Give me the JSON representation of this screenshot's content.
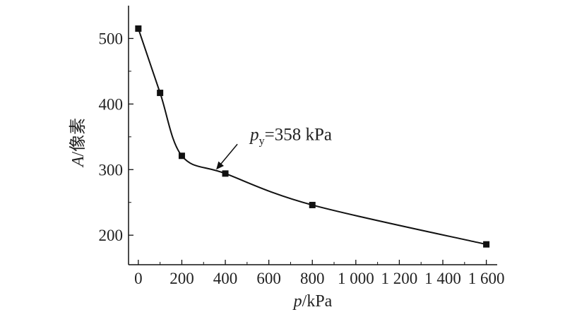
{
  "chart_data": {
    "type": "line",
    "x_unit": "kPa",
    "xlabel": {
      "var": "p",
      "unit": "/kPa"
    },
    "ylabel": {
      "var": "A",
      "unit": "/像素"
    },
    "xlim": [
      -45,
      1650
    ],
    "ylim": [
      155,
      550
    ],
    "x_tick_labels": [
      "0",
      "200",
      "400",
      "600",
      "800",
      "1 000",
      "1 200",
      "1 400",
      "1 600"
    ],
    "x_tick_values": [
      0,
      200,
      400,
      600,
      800,
      1000,
      1200,
      1400,
      1600
    ],
    "y_ticks": [
      200,
      300,
      400,
      500
    ],
    "series": [
      {
        "marker": "square",
        "smooth": true,
        "x": [
          0,
          100,
          200,
          400,
          800,
          1600
        ],
        "y": [
          515,
          417,
          321,
          294,
          246,
          186
        ]
      }
    ],
    "annotation": {
      "base": "p",
      "sub": "y",
      "text": "=358 kPa",
      "x": 358,
      "y": 300
    },
    "grid": false
  }
}
